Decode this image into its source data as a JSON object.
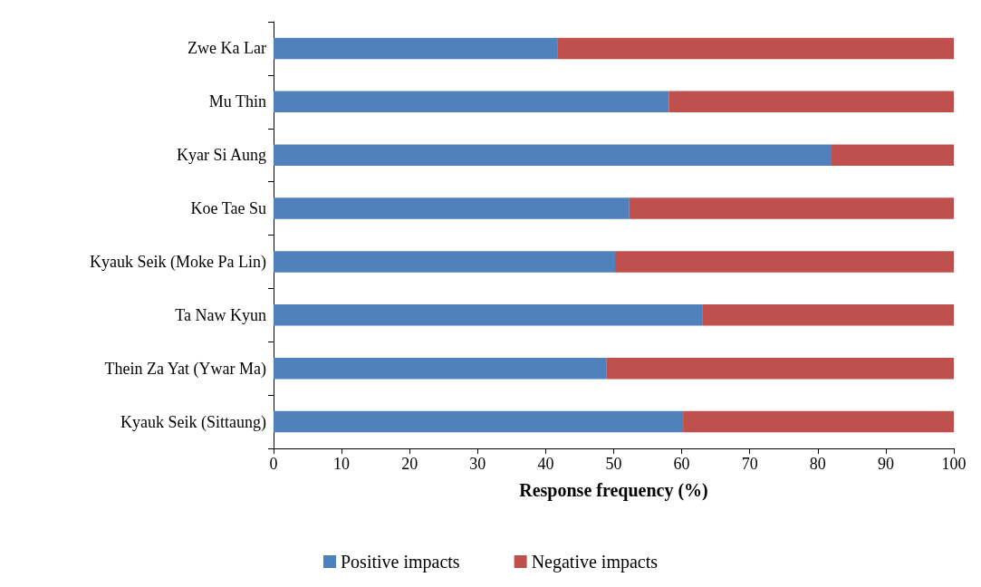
{
  "chart_data": {
    "type": "bar",
    "orientation": "horizontal",
    "stacked": true,
    "xlabel": "Response frequency (%)",
    "categories": [
      "Zwe Ka Lar",
      "Mu Thin",
      "Kyar Si Aung",
      "Koe Tae Su",
      "Kyauk Seik (Moke Pa Lin)",
      "Ta Naw Kyun",
      "Thein Za Yat (Ywar Ma)",
      "Kyauk Seik (Sittaung)"
    ],
    "series": [
      {
        "name": "Positive impacts",
        "color": "#4f81bd",
        "values": [
          41.7,
          58.1,
          81.9,
          52.3,
          50.2,
          63.1,
          48.9,
          60.2
        ]
      },
      {
        "name": "Negative impacts",
        "color": "#c0504d",
        "values": [
          58.3,
          41.9,
          18.1,
          47.7,
          49.8,
          36.9,
          51.1,
          39.8
        ]
      }
    ],
    "xlim": [
      0,
      100
    ],
    "xticks": [
      0,
      10,
      20,
      30,
      40,
      50,
      60,
      70,
      80,
      90,
      100
    ],
    "grid": false,
    "legend": "bottom"
  }
}
